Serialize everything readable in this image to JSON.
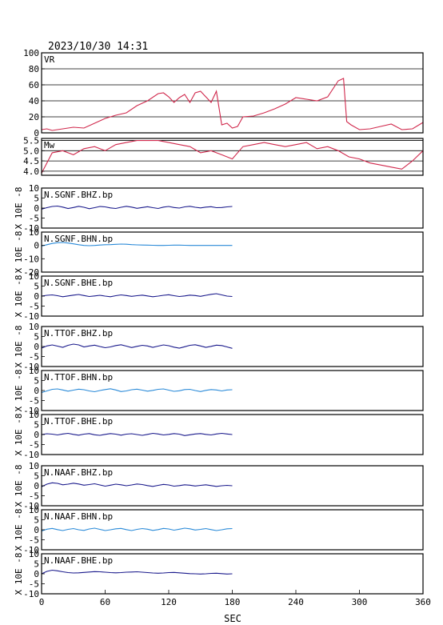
{
  "header": {
    "timestamp": "2023/10/30 14:31"
  },
  "colors": {
    "axis": "#000000",
    "vr_mw": "#d0284c",
    "dark_trace": "#1a1a8c",
    "light_trace": "#2a8ad8"
  },
  "chart_data": [
    {
      "type": "line",
      "label": "VR",
      "ylim": [
        0,
        100
      ],
      "yticks": [
        "0",
        "20",
        "40",
        "60",
        "80",
        "100"
      ],
      "grid": true,
      "x": [
        0,
        5,
        10,
        20,
        30,
        40,
        50,
        55,
        60,
        70,
        80,
        90,
        100,
        110,
        115,
        120,
        125,
        130,
        135,
        140,
        145,
        150,
        155,
        160,
        165,
        170,
        175,
        180,
        185,
        190,
        200,
        210,
        220,
        230,
        240,
        250,
        260,
        270,
        280,
        285,
        288,
        292,
        300,
        310,
        320,
        330,
        340,
        350,
        360
      ],
      "y": [
        4,
        5,
        3,
        5,
        7,
        6,
        12,
        15,
        18,
        22,
        25,
        34,
        40,
        49,
        50,
        45,
        38,
        44,
        48,
        38,
        50,
        52,
        45,
        38,
        52,
        10,
        12,
        6,
        8,
        20,
        21,
        25,
        30,
        36,
        44,
        42,
        40,
        45,
        65,
        68,
        14,
        10,
        4,
        5,
        8,
        11,
        4,
        5,
        13
      ]
    },
    {
      "type": "line",
      "label": "Mw",
      "ylim": [
        3.8,
        5.6
      ],
      "yticks": [
        "4.0",
        "4.5",
        "5.0",
        "5.5"
      ],
      "grid": true,
      "x": [
        0,
        10,
        20,
        30,
        40,
        50,
        60,
        70,
        80,
        90,
        100,
        110,
        120,
        130,
        140,
        150,
        160,
        170,
        180,
        190,
        200,
        210,
        220,
        230,
        240,
        250,
        260,
        270,
        280,
        290,
        300,
        310,
        320,
        330,
        340,
        350,
        360
      ],
      "y": [
        3.9,
        4.9,
        5.0,
        4.8,
        5.1,
        5.2,
        5.0,
        5.3,
        5.4,
        5.5,
        5.5,
        5.5,
        5.4,
        5.3,
        5.2,
        4.9,
        5.0,
        4.8,
        4.6,
        5.2,
        5.3,
        5.4,
        5.3,
        5.2,
        5.3,
        5.4,
        5.1,
        5.2,
        5.0,
        4.7,
        4.6,
        4.4,
        4.3,
        4.2,
        4.1,
        4.5,
        5.0
      ]
    },
    {
      "type": "line",
      "label": "N.SGNF.BHZ.bp",
      "ylim": [
        -10,
        10
      ],
      "yticks": [
        "-10",
        "-5",
        "0",
        "5",
        "10"
      ],
      "color": "dark",
      "values": [
        -0.5,
        0.2,
        0.8,
        1.0,
        0.5,
        -0.2,
        0.3,
        0.9,
        0.4,
        -0.3,
        0.2,
        0.8,
        0.6,
        0.1,
        -0.2,
        0.4,
        0.9,
        0.5,
        -0.1,
        0.3,
        0.7,
        0.2,
        -0.2,
        0.5,
        0.8,
        0.3,
        0.0,
        0.6,
        0.9,
        0.4,
        0.1,
        0.5,
        0.7,
        0.2,
        0.3,
        0.6,
        0.8
      ]
    },
    {
      "type": "line",
      "label": "N.SGNF.BHN.bp",
      "ylim": [
        -20,
        10
      ],
      "yticks": [
        "-20",
        "-10",
        "0",
        "10"
      ],
      "color": "light",
      "values": [
        -0.5,
        0.5,
        1.5,
        2.0,
        2.2,
        1.8,
        1.2,
        0.5,
        0.0,
        -0.2,
        0.0,
        0.3,
        0.5,
        0.6,
        0.8,
        1.0,
        0.9,
        0.6,
        0.4,
        0.3,
        0.2,
        0.1,
        0.0,
        0.0,
        0.1,
        0.2,
        0.2,
        0.1,
        0.0,
        0.0,
        0.0,
        0.0,
        0.0,
        0.0,
        0.0,
        0.0,
        0.0
      ]
    },
    {
      "type": "line",
      "label": "N.SGNF.BHE.bp",
      "ylim": [
        -10,
        10
      ],
      "yticks": [
        "-10",
        "-5",
        "0",
        "5",
        "10"
      ],
      "color": "dark",
      "values": [
        0.0,
        0.4,
        0.6,
        0.2,
        -0.3,
        0.1,
        0.5,
        0.8,
        0.3,
        -0.2,
        0.1,
        0.4,
        0.0,
        -0.3,
        0.2,
        0.6,
        0.3,
        -0.1,
        0.2,
        0.5,
        0.1,
        -0.3,
        0.0,
        0.4,
        0.7,
        0.2,
        -0.2,
        0.1,
        0.5,
        0.3,
        -0.1,
        0.4,
        0.9,
        1.2,
        0.6,
        0.0,
        -0.2
      ]
    },
    {
      "type": "line",
      "label": "N.TTOF.BHZ.bp",
      "ylim": [
        -10,
        10
      ],
      "yticks": [
        "-10",
        "-5",
        "0",
        "5",
        "10"
      ],
      "color": "dark",
      "values": [
        -0.8,
        0.3,
        0.8,
        0.2,
        -0.4,
        0.6,
        1.2,
        0.8,
        -0.2,
        0.3,
        0.7,
        0.0,
        -0.6,
        -0.2,
        0.5,
        0.9,
        0.2,
        -0.5,
        0.1,
        0.6,
        0.3,
        -0.4,
        0.2,
        0.8,
        0.4,
        -0.3,
        -0.8,
        -0.1,
        0.6,
        0.9,
        0.3,
        -0.4,
        0.1,
        0.7,
        0.5,
        -0.2,
        -0.9
      ]
    },
    {
      "type": "line",
      "label": "N.TTOF.BHN.bp",
      "ylim": [
        -10,
        10
      ],
      "yticks": [
        "-10",
        "-5",
        "0",
        "5",
        "10"
      ],
      "color": "light",
      "values": [
        -1.0,
        -0.2,
        0.6,
        0.8,
        0.3,
        -0.3,
        0.2,
        0.7,
        0.4,
        -0.2,
        -0.6,
        0.0,
        0.5,
        0.9,
        0.3,
        -0.5,
        -0.2,
        0.4,
        0.7,
        0.2,
        -0.3,
        0.1,
        0.6,
        0.8,
        0.2,
        -0.4,
        -0.1,
        0.5,
        0.6,
        0.0,
        -0.5,
        0.1,
        0.5,
        0.3,
        -0.2,
        0.3,
        0.4
      ]
    },
    {
      "type": "line",
      "label": "N.TTOF.BHE.bp",
      "ylim": [
        -10,
        10
      ],
      "yticks": [
        "-10",
        "-5",
        "0",
        "5",
        "10"
      ],
      "color": "dark",
      "values": [
        0.0,
        0.4,
        0.2,
        -0.2,
        0.3,
        0.6,
        0.1,
        -0.3,
        0.2,
        0.5,
        -0.1,
        -0.4,
        0.1,
        0.5,
        0.2,
        -0.3,
        0.2,
        0.4,
        0.0,
        -0.4,
        0.1,
        0.6,
        0.3,
        -0.2,
        0.1,
        0.5,
        0.2,
        -0.5,
        -0.1,
        0.3,
        0.5,
        0.1,
        -0.2,
        0.3,
        0.6,
        0.3,
        0.0
      ]
    },
    {
      "type": "line",
      "label": "N.NAAF.BHZ.bp",
      "ylim": [
        -10,
        10
      ],
      "yticks": [
        "-10",
        "-5",
        "0",
        "5",
        "10"
      ],
      "color": "dark",
      "values": [
        -0.5,
        0.8,
        1.5,
        1.2,
        0.5,
        0.8,
        1.3,
        0.9,
        0.3,
        0.6,
        1.0,
        0.4,
        -0.2,
        0.3,
        0.8,
        0.5,
        0.0,
        0.4,
        0.9,
        0.6,
        0.1,
        -0.3,
        0.2,
        0.7,
        0.4,
        -0.2,
        0.1,
        0.5,
        0.3,
        -0.1,
        0.2,
        0.5,
        0.1,
        -0.3,
        0.0,
        0.2,
        0.0
      ]
    },
    {
      "type": "line",
      "label": "N.NAAF.BHN.bp",
      "ylim": [
        -10,
        10
      ],
      "yticks": [
        "-10",
        "-5",
        "0",
        "5",
        "10"
      ],
      "color": "light",
      "values": [
        -0.6,
        0.3,
        0.7,
        0.1,
        -0.4,
        0.2,
        0.6,
        0.0,
        -0.3,
        0.4,
        0.8,
        0.2,
        -0.4,
        0.0,
        0.5,
        0.7,
        0.1,
        -0.4,
        0.2,
        0.6,
        0.3,
        -0.3,
        0.1,
        0.7,
        0.4,
        -0.2,
        0.3,
        0.8,
        0.5,
        -0.1,
        0.2,
        0.6,
        0.1,
        -0.4,
        0.0,
        0.5,
        0.6
      ]
    },
    {
      "type": "line",
      "label": "N.NAAF.BHE.bp",
      "ylim": [
        -10,
        10
      ],
      "yticks": [
        "-10",
        "-5",
        "0",
        "5",
        "10"
      ],
      "color": "dark",
      "values": [
        0.0,
        1.2,
        1.8,
        1.5,
        1.0,
        0.6,
        0.4,
        0.5,
        0.7,
        0.9,
        1.1,
        1.0,
        0.8,
        0.6,
        0.5,
        0.6,
        0.8,
        0.9,
        1.0,
        0.8,
        0.6,
        0.4,
        0.3,
        0.4,
        0.6,
        0.7,
        0.5,
        0.3,
        0.1,
        0.0,
        -0.1,
        0.0,
        0.2,
        0.3,
        0.1,
        -0.1,
        0.0
      ]
    }
  ],
  "trace_x_range": [
    0,
    180
  ],
  "y_label_text": "X 10E -8",
  "x_axis": {
    "xlim": [
      0,
      360
    ],
    "ticks": [
      "0",
      "60",
      "120",
      "180",
      "240",
      "300",
      "360"
    ],
    "label": "SEC"
  }
}
